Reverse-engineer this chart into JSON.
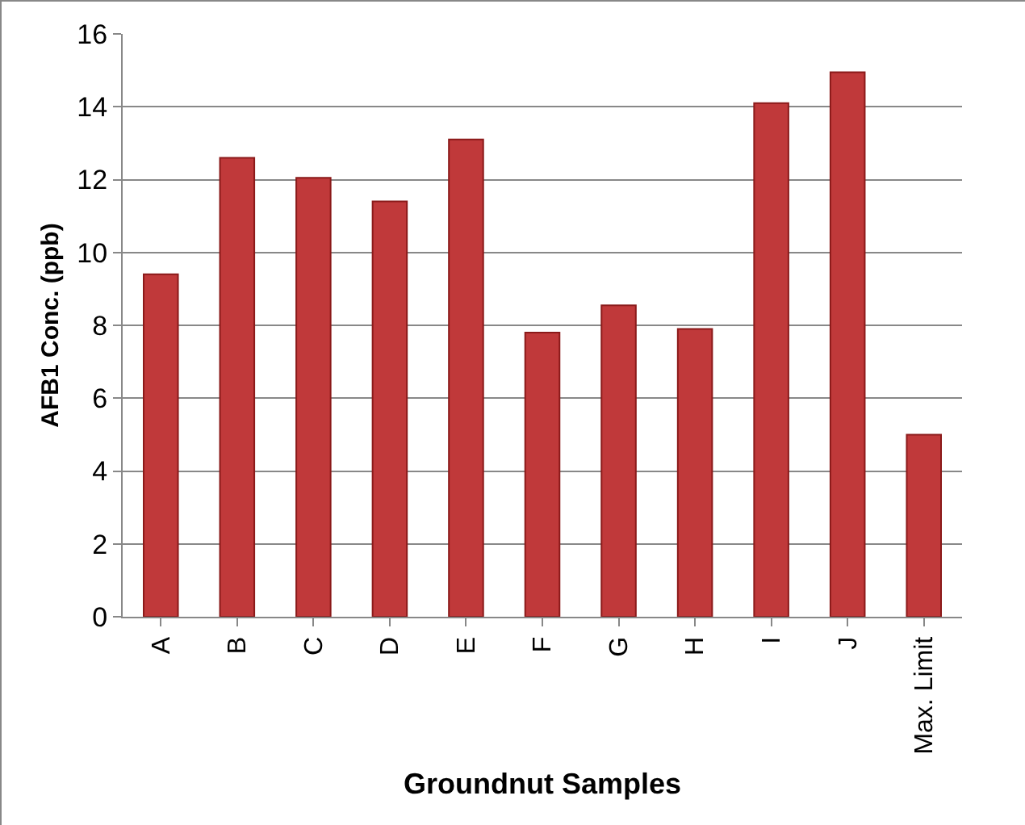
{
  "chart_data": {
    "type": "bar",
    "xlabel": "Groundnut Samples",
    "ylabel": "AFB1 Conc. (ppb)",
    "categories": [
      "A",
      "B",
      "C",
      "D",
      "E",
      "F",
      "G",
      "H",
      "I",
      "J",
      "Max. Limit"
    ],
    "values": [
      9.4,
      12.6,
      12.05,
      11.4,
      13.1,
      7.8,
      8.55,
      7.9,
      14.1,
      14.95,
      5.0
    ],
    "color": "#c0393a",
    "ylim": [
      0,
      16
    ],
    "yticks": [
      0,
      2,
      4,
      6,
      8,
      10,
      12,
      14,
      16
    ],
    "grid": "y",
    "legend": false
  }
}
